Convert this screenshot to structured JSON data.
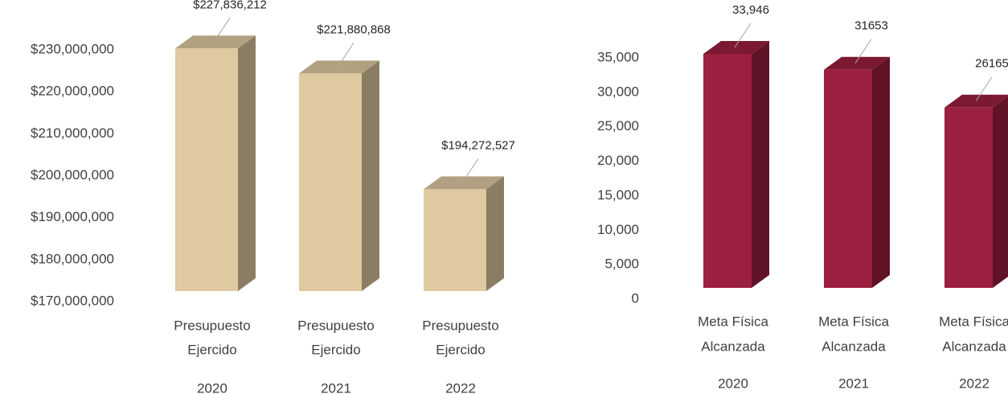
{
  "chart_data": [
    {
      "type": "bar3d",
      "categories": [
        [
          "Presupuesto",
          "Ejercido",
          "2020"
        ],
        [
          "Presupuesto",
          "Ejercido",
          "2021"
        ],
        [
          "Presupuesto",
          "Ejercido",
          "2022"
        ]
      ],
      "values": [
        227836212,
        221880868,
        194272527
      ],
      "value_labels": [
        "$227,836,212",
        "$221,880,868",
        "$194,272,527"
      ],
      "color": "#dfc9a0",
      "ylim": [
        170000000,
        230000000
      ],
      "yticks": [
        {
          "value": 170000000,
          "label": "$170,000,000"
        },
        {
          "value": 180000000,
          "label": "$180,000,000"
        },
        {
          "value": 190000000,
          "label": "$190,000,000"
        },
        {
          "value": 200000000,
          "label": "$200,000,000"
        },
        {
          "value": 210000000,
          "label": "$210,000,000"
        },
        {
          "value": 220000000,
          "label": "$220,000,000"
        },
        {
          "value": 230000000,
          "label": "$230,000,000"
        }
      ]
    },
    {
      "type": "bar3d",
      "categories": [
        [
          "Meta Física",
          "Alcanzada",
          "2020"
        ],
        [
          "Meta Física",
          "Alcanzada",
          "2021"
        ],
        [
          "Meta Física",
          "Alcanzada",
          "2022"
        ]
      ],
      "values": [
        33946,
        31653,
        26165
      ],
      "value_labels": [
        "33,946",
        "31653",
        "26165"
      ],
      "color": "#9b1f3e",
      "ylim": [
        0,
        35000
      ],
      "yticks": [
        0,
        {
          "value": 5000,
          "label": "5,000"
        },
        {
          "value": 10000,
          "label": "10,000"
        },
        {
          "value": 15000,
          "label": "15,000"
        },
        {
          "value": 20000,
          "label": "20,000"
        },
        {
          "value": 25000,
          "label": "25,000"
        },
        {
          "value": 30000,
          "label": "30,000"
        },
        {
          "value": 35000,
          "label": "35,000"
        }
      ]
    }
  ]
}
